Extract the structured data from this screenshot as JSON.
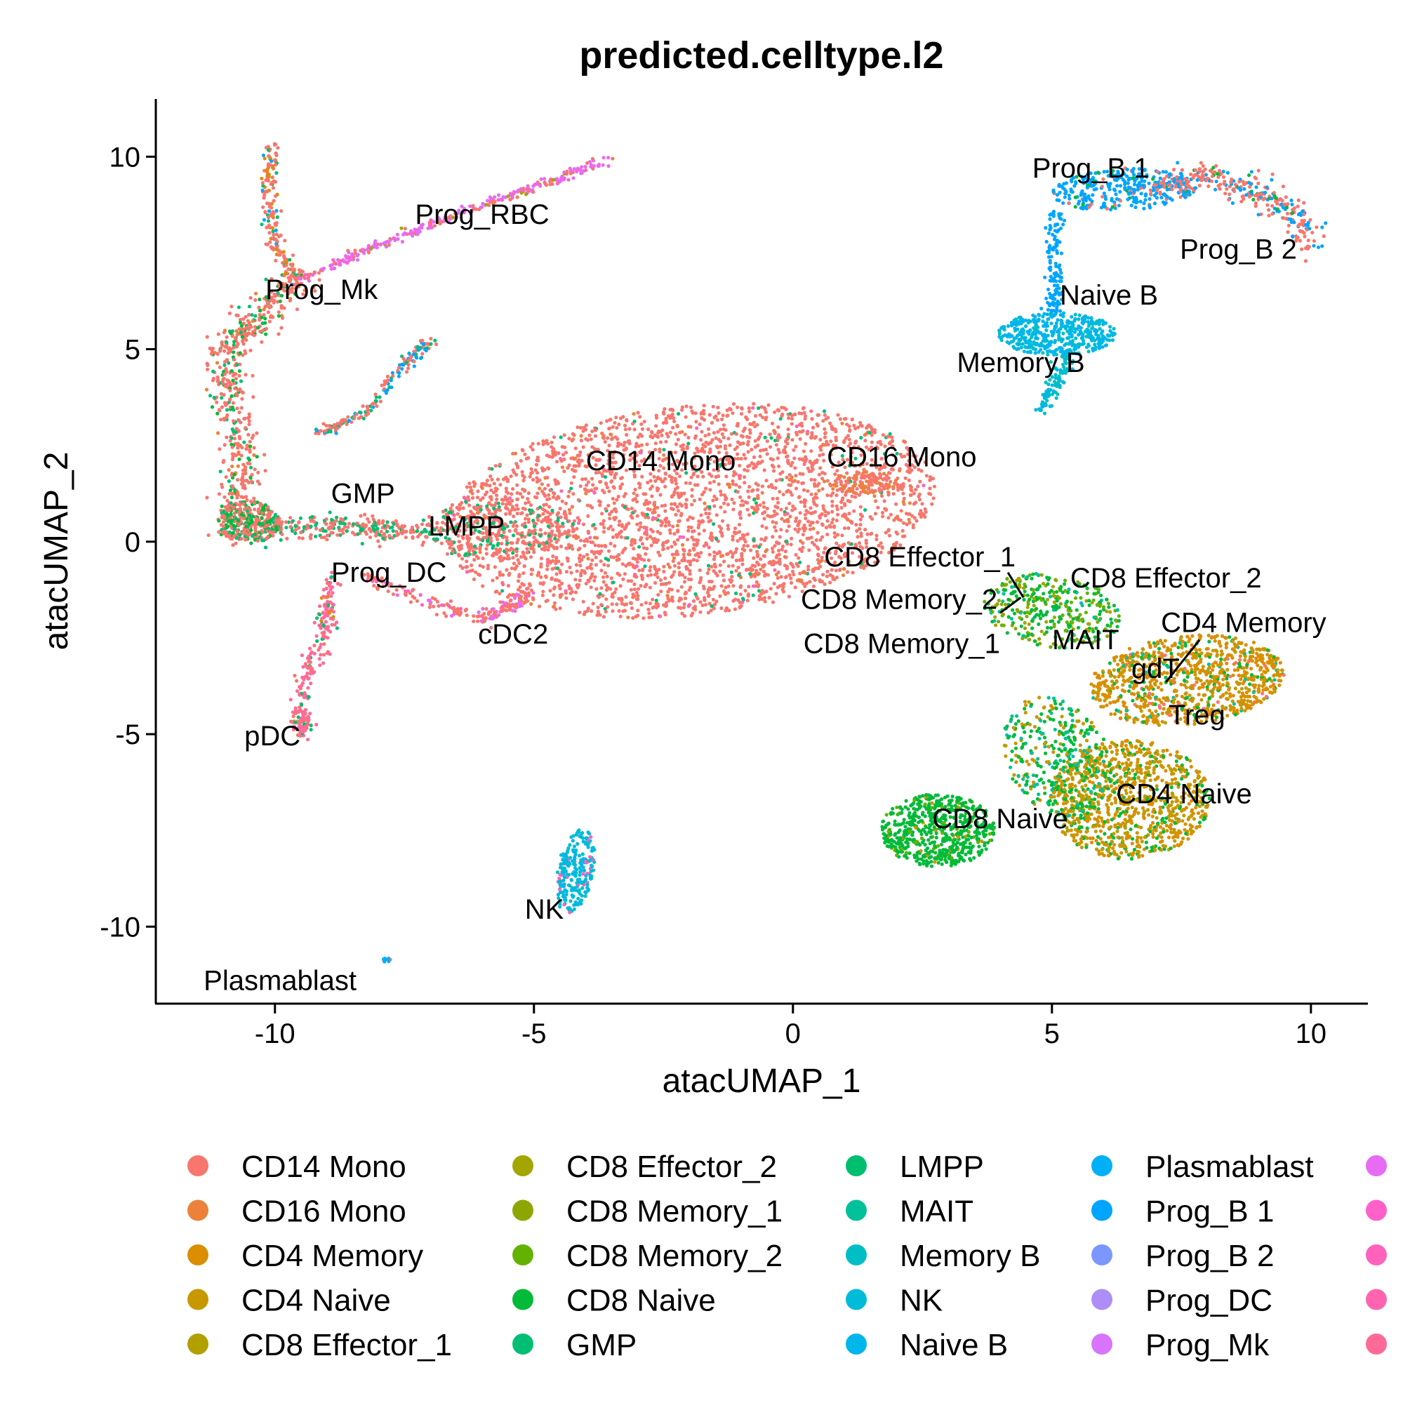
{
  "chart_data": {
    "type": "scatter",
    "title": "predicted.celltype.l2",
    "xlabel": "atacUMAP_1",
    "ylabel": "atacUMAP_2",
    "xlim": [
      -12.3,
      11.1
    ],
    "ylim": [
      -12.0,
      11.5
    ],
    "xticks": [
      -10,
      -5,
      0,
      5,
      10
    ],
    "yticks": [
      10,
      5,
      0,
      -5,
      -10
    ],
    "xtick_labels": [
      "-10",
      "-5",
      "0",
      "5",
      "10"
    ],
    "ytick_labels": [
      "10",
      "5",
      "0",
      "-5",
      "-10"
    ],
    "grid": false,
    "legend_position": "bottom",
    "legend": [
      {
        "name": "CD14 Mono",
        "color": "#F8766D"
      },
      {
        "name": "CD16 Mono",
        "color": "#EC8239"
      },
      {
        "name": "CD4 Memory",
        "color": "#DB8E00"
      },
      {
        "name": "CD4 Naive",
        "color": "#C79800"
      },
      {
        "name": "CD8 Effector_1",
        "color": "#B0A100"
      },
      {
        "name": "CD8 Effector_2",
        "color": "#A3A500"
      },
      {
        "name": "CD8 Memory_1",
        "color": "#8EA600"
      },
      {
        "name": "CD8 Memory_2",
        "color": "#64B200"
      },
      {
        "name": "CD8 Naive",
        "color": "#00BA38"
      },
      {
        "name": "GMP",
        "color": "#00BF74"
      },
      {
        "name": "LMPP",
        "color": "#00BE6F"
      },
      {
        "name": "MAIT",
        "color": "#00C19A"
      },
      {
        "name": "Memory B",
        "color": "#00BFC4"
      },
      {
        "name": "NK",
        "color": "#00BCD8"
      },
      {
        "name": "Naive B",
        "color": "#00B6EB"
      },
      {
        "name": "Plasmablast",
        "color": "#00B0F6"
      },
      {
        "name": "Prog_B 1",
        "color": "#00A5FF"
      },
      {
        "name": "Prog_B 2",
        "color": "#7C96FF"
      },
      {
        "name": "Prog_DC",
        "color": "#AD8EF7"
      },
      {
        "name": "Prog_Mk",
        "color": "#D874FD"
      },
      {
        "name": "",
        "color": "#E76BF3"
      },
      {
        "name": "",
        "color": "#FF61C9"
      },
      {
        "name": "",
        "color": "#FF62BC"
      },
      {
        "name": "",
        "color": "#FF65AE"
      },
      {
        "name": "",
        "color": "#FF6A98"
      }
    ],
    "cluster_labels": [
      {
        "text": "Prog_B 1",
        "x": 5.75,
        "y": 9.65
      },
      {
        "text": "Prog_RBC",
        "x": -6.0,
        "y": 8.45
      },
      {
        "text": "Prog_B 2",
        "x": 8.6,
        "y": 7.55
      },
      {
        "text": "Prog_Mk",
        "x": -9.1,
        "y": 6.5
      },
      {
        "text": "Naive B",
        "x": 6.1,
        "y": 6.35
      },
      {
        "text": "Memory B",
        "x": 4.4,
        "y": 4.6
      },
      {
        "text": "CD14 Mono",
        "x": -2.55,
        "y": 2.05
      },
      {
        "text": "CD16 Mono",
        "x": 2.1,
        "y": 2.15
      },
      {
        "text": "GMP",
        "x": -8.3,
        "y": 1.2
      },
      {
        "text": "LMPP",
        "x": -6.3,
        "y": 0.35
      },
      {
        "text": "Prog_DC",
        "x": -7.8,
        "y": -0.85
      },
      {
        "text": "CD8 Effector_1",
        "x": 2.45,
        "y": -0.45
      },
      {
        "text": "CD8 Effector_2",
        "x": 7.2,
        "y": -1.0
      },
      {
        "text": "CD8 Memory_2",
        "x": 2.05,
        "y": -1.55
      },
      {
        "text": "cDC2",
        "x": -5.4,
        "y": -2.45
      },
      {
        "text": "CD4 Memory",
        "x": 8.7,
        "y": -2.15
      },
      {
        "text": "CD8 Memory_1",
        "x": 2.1,
        "y": -2.7
      },
      {
        "text": "MAIT",
        "x": 5.65,
        "y": -2.6
      },
      {
        "text": "gdT",
        "x": 7.0,
        "y": -3.35
      },
      {
        "text": "Treg",
        "x": 7.8,
        "y": -4.55
      },
      {
        "text": "pDC",
        "x": -10.05,
        "y": -5.1
      },
      {
        "text": "CD4 Naive",
        "x": 7.55,
        "y": -6.6
      },
      {
        "text": "CD8 Naive",
        "x": 4.0,
        "y": -7.25
      },
      {
        "text": "NK",
        "x": -4.8,
        "y": -9.6
      },
      {
        "text": "Plasmablast",
        "x": -9.9,
        "y": -11.45
      }
    ],
    "label_connectors": [
      {
        "x1": 4.15,
        "y1": -0.8,
        "x2": 4.45,
        "y2": -1.45
      },
      {
        "x1": 4.4,
        "y1": -1.45,
        "x2": 4.0,
        "y2": -1.85
      },
      {
        "x1": 7.2,
        "y1": -3.65,
        "x2": 7.85,
        "y2": -2.55
      }
    ],
    "clusters": [
      {
        "name": "Mono main body",
        "shape": "ellipse",
        "cx": -2.0,
        "cy": 0.8,
        "rx": 4.8,
        "ry": 2.7,
        "rot": 10,
        "n": 2900,
        "mix": [
          [
            "#F8766D",
            0.92
          ],
          [
            "#EC8239",
            0.03
          ],
          [
            "#00BF74",
            0.03
          ],
          [
            "#FF62BC",
            0.02
          ]
        ]
      },
      {
        "name": "Mono left extension",
        "shape": "ellipse",
        "cx": -5.8,
        "cy": 0.3,
        "rx": 1.6,
        "ry": 0.7,
        "rot": 5,
        "n": 300,
        "mix": [
          [
            "#F8766D",
            0.75
          ],
          [
            "#00BF74",
            0.15
          ],
          [
            "#00BE6F",
            0.1
          ]
        ]
      },
      {
        "name": "CD16 Mono tail",
        "shape": "ellipse",
        "cx": 1.3,
        "cy": 1.55,
        "rx": 0.7,
        "ry": 0.3,
        "rot": 0,
        "n": 90,
        "mix": [
          [
            "#F8766D",
            0.6
          ],
          [
            "#EC8239",
            0.4
          ]
        ]
      },
      {
        "name": "cDC2 strand",
        "shape": "path",
        "pts": [
          [
            -8.3,
            -0.9
          ],
          [
            -7.0,
            -1.6
          ],
          [
            -6.0,
            -2.0
          ],
          [
            -5.5,
            -1.7
          ],
          [
            -5.1,
            -1.3
          ]
        ],
        "w": 0.18,
        "n": 190,
        "mix": [
          [
            "#F8766D",
            0.6
          ],
          [
            "#E76BF3",
            0.3
          ],
          [
            "#FF62BC",
            0.1
          ]
        ]
      },
      {
        "name": "GMP/LMPP band",
        "shape": "path",
        "pts": [
          [
            -10.8,
            0.4
          ],
          [
            -9.5,
            0.4
          ],
          [
            -8.3,
            0.35
          ],
          [
            -7.3,
            0.3
          ]
        ],
        "w": 0.28,
        "n": 300,
        "mix": [
          [
            "#F8766D",
            0.6
          ],
          [
            "#00BF74",
            0.25
          ],
          [
            "#00BE6F",
            0.15
          ]
        ]
      },
      {
        "name": "left trunk",
        "shape": "path",
        "pts": [
          [
            -10.9,
            0.3
          ],
          [
            -10.6,
            1.8
          ],
          [
            -10.8,
            3.4
          ],
          [
            -11.0,
            4.9
          ],
          [
            -10.3,
            5.8
          ],
          [
            -9.4,
            7.0
          ]
        ],
        "w": 0.35,
        "n": 560,
        "mix": [
          [
            "#F8766D",
            0.7
          ],
          [
            "#00BA38",
            0.15
          ],
          [
            "#00BF74",
            0.1
          ],
          [
            "#EC8239",
            0.05
          ]
        ]
      },
      {
        "name": "GMP blob",
        "shape": "ellipse",
        "cx": -10.5,
        "cy": 0.5,
        "rx": 0.6,
        "ry": 0.55,
        "rot": 0,
        "n": 260,
        "mix": [
          [
            "#F8766D",
            0.55
          ],
          [
            "#00BA38",
            0.3
          ],
          [
            "#00BF74",
            0.15
          ]
        ]
      },
      {
        "name": "Prog_Mk vertical",
        "shape": "path",
        "pts": [
          [
            -9.6,
            6.8
          ],
          [
            -10.0,
            7.7
          ],
          [
            -10.1,
            9.0
          ],
          [
            -10.05,
            10.35
          ]
        ],
        "w": 0.14,
        "n": 180,
        "mix": [
          [
            "#F8766D",
            0.7
          ],
          [
            "#DB8E00",
            0.15
          ],
          [
            "#00BF74",
            0.1
          ],
          [
            "#00A5FF",
            0.05
          ]
        ]
      },
      {
        "name": "Prog_RBC strand",
        "shape": "path",
        "pts": [
          [
            -9.5,
            6.8
          ],
          [
            -8.0,
            7.7
          ],
          [
            -6.5,
            8.5
          ],
          [
            -5.0,
            9.2
          ],
          [
            -3.6,
            9.9
          ]
        ],
        "w": 0.12,
        "n": 300,
        "mix": [
          [
            "#E76BF3",
            0.55
          ],
          [
            "#F8766D",
            0.25
          ],
          [
            "#FF61C9",
            0.15
          ],
          [
            "#A3A500",
            0.05
          ]
        ]
      },
      {
        "name": "middle branch",
        "shape": "path",
        "pts": [
          [
            -9.2,
            2.8
          ],
          [
            -8.3,
            3.3
          ],
          [
            -7.5,
            4.6
          ],
          [
            -7.0,
            5.25
          ]
        ],
        "w": 0.12,
        "n": 180,
        "mix": [
          [
            "#F8766D",
            0.55
          ],
          [
            "#00A5FF",
            0.25
          ],
          [
            "#00BF74",
            0.2
          ]
        ]
      },
      {
        "name": "Prog_DC / pDC strand",
        "shape": "path",
        "pts": [
          [
            -8.9,
            -0.9
          ],
          [
            -9.0,
            -2.2
          ],
          [
            -9.4,
            -3.5
          ],
          [
            -9.5,
            -4.5
          ],
          [
            -9.5,
            -4.95
          ]
        ],
        "w": 0.17,
        "n": 240,
        "mix": [
          [
            "#FF6A98",
            0.7
          ],
          [
            "#F8766D",
            0.15
          ],
          [
            "#00BE6F",
            0.1
          ],
          [
            "#DB8E00",
            0.05
          ]
        ]
      },
      {
        "name": "NK",
        "shape": "ellipse",
        "cx": -4.2,
        "cy": -8.55,
        "rx": 0.35,
        "ry": 1.1,
        "rot": -8,
        "n": 240,
        "mix": [
          [
            "#00BCD8",
            0.8
          ],
          [
            "#FF62BC",
            0.1
          ],
          [
            "#00B6EB",
            0.1
          ]
        ]
      },
      {
        "name": "Plasmablast",
        "shape": "ellipse",
        "cx": -7.85,
        "cy": -10.85,
        "rx": 0.08,
        "ry": 0.08,
        "rot": 0,
        "n": 10,
        "mix": [
          [
            "#F8766D",
            0.6
          ],
          [
            "#00B0F6",
            0.4
          ]
        ]
      },
      {
        "name": "Prog_B 1",
        "shape": "ellipse",
        "cx": 6.4,
        "cy": 9.15,
        "rx": 1.4,
        "ry": 0.55,
        "rot": 5,
        "n": 320,
        "mix": [
          [
            "#00A5FF",
            0.85
          ],
          [
            "#F8766D",
            0.1
          ],
          [
            "#00BA38",
            0.05
          ]
        ]
      },
      {
        "name": "Prog_B 2 arc",
        "shape": "path",
        "pts": [
          [
            7.2,
            9.3
          ],
          [
            8.0,
            9.5
          ],
          [
            9.0,
            9.1
          ],
          [
            9.7,
            8.5
          ],
          [
            10.0,
            7.75
          ]
        ],
        "w": 0.3,
        "n": 300,
        "mix": [
          [
            "#F8766D",
            0.6
          ],
          [
            "#00A5FF",
            0.35
          ],
          [
            "#00BA38",
            0.05
          ]
        ]
      },
      {
        "name": "B stem",
        "shape": "path",
        "pts": [
          [
            5.1,
            8.6
          ],
          [
            5.0,
            7.6
          ],
          [
            5.1,
            6.5
          ],
          [
            5.0,
            6.0
          ]
        ],
        "w": 0.15,
        "n": 130,
        "mix": [
          [
            "#00A5FF",
            1.0
          ]
        ]
      },
      {
        "name": "Naive B",
        "shape": "ellipse",
        "cx": 5.1,
        "cy": 5.4,
        "rx": 1.15,
        "ry": 0.55,
        "rot": 0,
        "n": 420,
        "mix": [
          [
            "#00B6EB",
            0.8
          ],
          [
            "#00BFC4",
            0.2
          ]
        ]
      },
      {
        "name": "Memory B",
        "shape": "path",
        "pts": [
          [
            5.3,
            4.9
          ],
          [
            5.1,
            4.2
          ],
          [
            4.8,
            3.4
          ]
        ],
        "w": 0.15,
        "n": 100,
        "mix": [
          [
            "#00BFC4",
            0.7
          ],
          [
            "#00B6EB",
            0.3
          ]
        ]
      },
      {
        "name": "CD8 effector/memory",
        "shape": "ellipse",
        "cx": 5.0,
        "cy": -1.8,
        "rx": 1.35,
        "ry": 0.95,
        "rot": -15,
        "n": 360,
        "mix": [
          [
            "#00BA38",
            0.45
          ],
          [
            "#64B200",
            0.2
          ],
          [
            "#8EA600",
            0.15
          ],
          [
            "#00C19A",
            0.1
          ],
          [
            "#A3A500",
            0.1
          ]
        ]
      },
      {
        "name": "CD4 Memory",
        "shape": "ellipse",
        "cx": 7.6,
        "cy": -3.6,
        "rx": 1.9,
        "ry": 1.15,
        "rot": 10,
        "n": 980,
        "mix": [
          [
            "#DB8E00",
            0.55
          ],
          [
            "#C79800",
            0.25
          ],
          [
            "#00BA38",
            0.12
          ],
          [
            "#F8766D",
            0.04
          ],
          [
            "#00C19A",
            0.04
          ]
        ]
      },
      {
        "name": "CD4 Naive",
        "shape": "ellipse",
        "cx": 6.5,
        "cy": -6.7,
        "rx": 1.55,
        "ry": 1.55,
        "rot": 0,
        "n": 1000,
        "mix": [
          [
            "#C79800",
            0.55
          ],
          [
            "#DB8E00",
            0.25
          ],
          [
            "#00BA38",
            0.2
          ]
        ]
      },
      {
        "name": "T bridge",
        "shape": "ellipse",
        "cx": 5.1,
        "cy": -5.6,
        "rx": 1.0,
        "ry": 1.6,
        "rot": 15,
        "n": 380,
        "mix": [
          [
            "#00BA38",
            0.45
          ],
          [
            "#C79800",
            0.35
          ],
          [
            "#00C19A",
            0.2
          ]
        ]
      },
      {
        "name": "CD8 Naive",
        "shape": "ellipse",
        "cx": 2.8,
        "cy": -7.5,
        "rx": 1.1,
        "ry": 0.95,
        "rot": 0,
        "n": 640,
        "mix": [
          [
            "#00BA38",
            0.85
          ],
          [
            "#64B200",
            0.1
          ],
          [
            "#C79800",
            0.05
          ]
        ]
      }
    ]
  }
}
